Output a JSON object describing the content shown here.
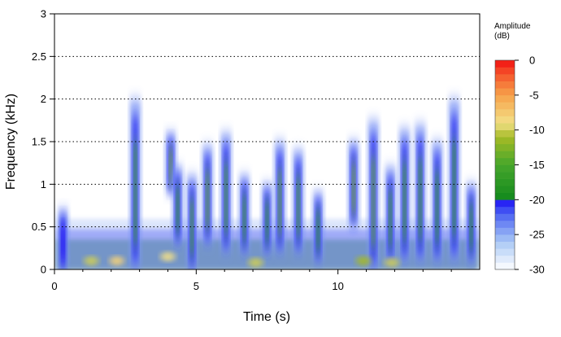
{
  "chart_data": {
    "type": "heatmap",
    "subtype": "spectrogram",
    "xlabel": "Time (s)",
    "ylabel": "Frequency (kHz)",
    "xlim": [
      0,
      15
    ],
    "ylim": [
      0,
      3
    ],
    "x_ticks": [
      0,
      5,
      10
    ],
    "y_ticks": [
      0,
      0.5,
      1,
      1.5,
      2,
      2.5,
      3
    ],
    "y_tick_labels": [
      "0",
      "0.5",
      "1",
      "1.5",
      "2",
      "2.5",
      "3"
    ],
    "grid": "horizontal dotted lines at y ticks",
    "legend": {
      "title_line1": "Amplitude",
      "title_line2": "(dB)",
      "ticks": [
        0,
        -5,
        -10,
        -15,
        -20,
        -25,
        -30
      ],
      "tick_labels": [
        "0",
        "-5",
        "-10",
        "-15",
        "-20",
        "-25",
        "-30"
      ],
      "range": [
        -30,
        0
      ],
      "placement": "right"
    },
    "colorscale": [
      {
        "db": -30,
        "color": "#ffffff"
      },
      {
        "db": -26,
        "color": "#a9c8f5"
      },
      {
        "db": -22,
        "color": "#4b62f2"
      },
      {
        "db": -20,
        "color": "#1c11f4"
      },
      {
        "db": -19.9,
        "color": "#138a1d"
      },
      {
        "db": -15,
        "color": "#46a62b"
      },
      {
        "db": -11,
        "color": "#a6ba25"
      },
      {
        "db": -9,
        "color": "#f3e087"
      },
      {
        "db": -5,
        "color": "#f6a24a"
      },
      {
        "db": -2,
        "color": "#f5552c"
      },
      {
        "db": 0,
        "color": "#f21010"
      }
    ],
    "background_band": {
      "x": [
        0.05,
        14.95
      ],
      "y_max_khz": 0.35,
      "db": -17,
      "note": "broad low-frequency energy along whole recording"
    },
    "events": [
      {
        "t": 0.3,
        "f_low": 0.0,
        "f_high": 0.7,
        "db": -20
      },
      {
        "t": 2.85,
        "f_low": 0.0,
        "f_high": 2.0,
        "db": -16
      },
      {
        "t": 4.1,
        "f_low": 0.9,
        "f_high": 1.6,
        "db": -13
      },
      {
        "t": 4.35,
        "f_low": 0.3,
        "f_high": 1.2,
        "db": -17
      },
      {
        "t": 4.85,
        "f_low": 0.0,
        "f_high": 1.1,
        "db": -15
      },
      {
        "t": 5.4,
        "f_low": 0.3,
        "f_high": 1.45,
        "db": -14
      },
      {
        "t": 6.05,
        "f_low": 0.2,
        "f_high": 1.6,
        "db": -15
      },
      {
        "t": 6.7,
        "f_low": 0.2,
        "f_high": 1.1,
        "db": -16
      },
      {
        "t": 7.5,
        "f_low": 0.2,
        "f_high": 1.0,
        "db": -17
      },
      {
        "t": 7.95,
        "f_low": 0.2,
        "f_high": 1.5,
        "db": -14
      },
      {
        "t": 8.6,
        "f_low": 0.2,
        "f_high": 1.4,
        "db": -15
      },
      {
        "t": 9.3,
        "f_low": 0.1,
        "f_high": 0.9,
        "db": -17
      },
      {
        "t": 10.55,
        "f_low": 0.5,
        "f_high": 1.5,
        "db": -13
      },
      {
        "t": 11.25,
        "f_low": 0.0,
        "f_high": 1.75,
        "db": -14
      },
      {
        "t": 11.85,
        "f_low": 0.1,
        "f_high": 1.2,
        "db": -16
      },
      {
        "t": 12.35,
        "f_low": 0.1,
        "f_high": 1.65,
        "db": -16
      },
      {
        "t": 12.9,
        "f_low": 0.1,
        "f_high": 1.7,
        "db": -16
      },
      {
        "t": 13.5,
        "f_low": 0.1,
        "f_high": 1.5,
        "db": -17
      },
      {
        "t": 14.1,
        "f_low": 0.1,
        "f_high": 2.0,
        "db": -17
      },
      {
        "t": 14.7,
        "f_low": 0.1,
        "f_high": 1.0,
        "db": -17
      }
    ],
    "hot_spots": [
      {
        "t": 2.2,
        "f": 0.1,
        "db": -8
      },
      {
        "t": 4.0,
        "f": 0.15,
        "db": -9
      },
      {
        "t": 1.3,
        "f": 0.1,
        "db": -10
      },
      {
        "t": 7.1,
        "f": 0.08,
        "db": -10
      },
      {
        "t": 10.9,
        "f": 0.1,
        "db": -11
      },
      {
        "t": 11.9,
        "f": 0.08,
        "db": -10
      }
    ]
  }
}
